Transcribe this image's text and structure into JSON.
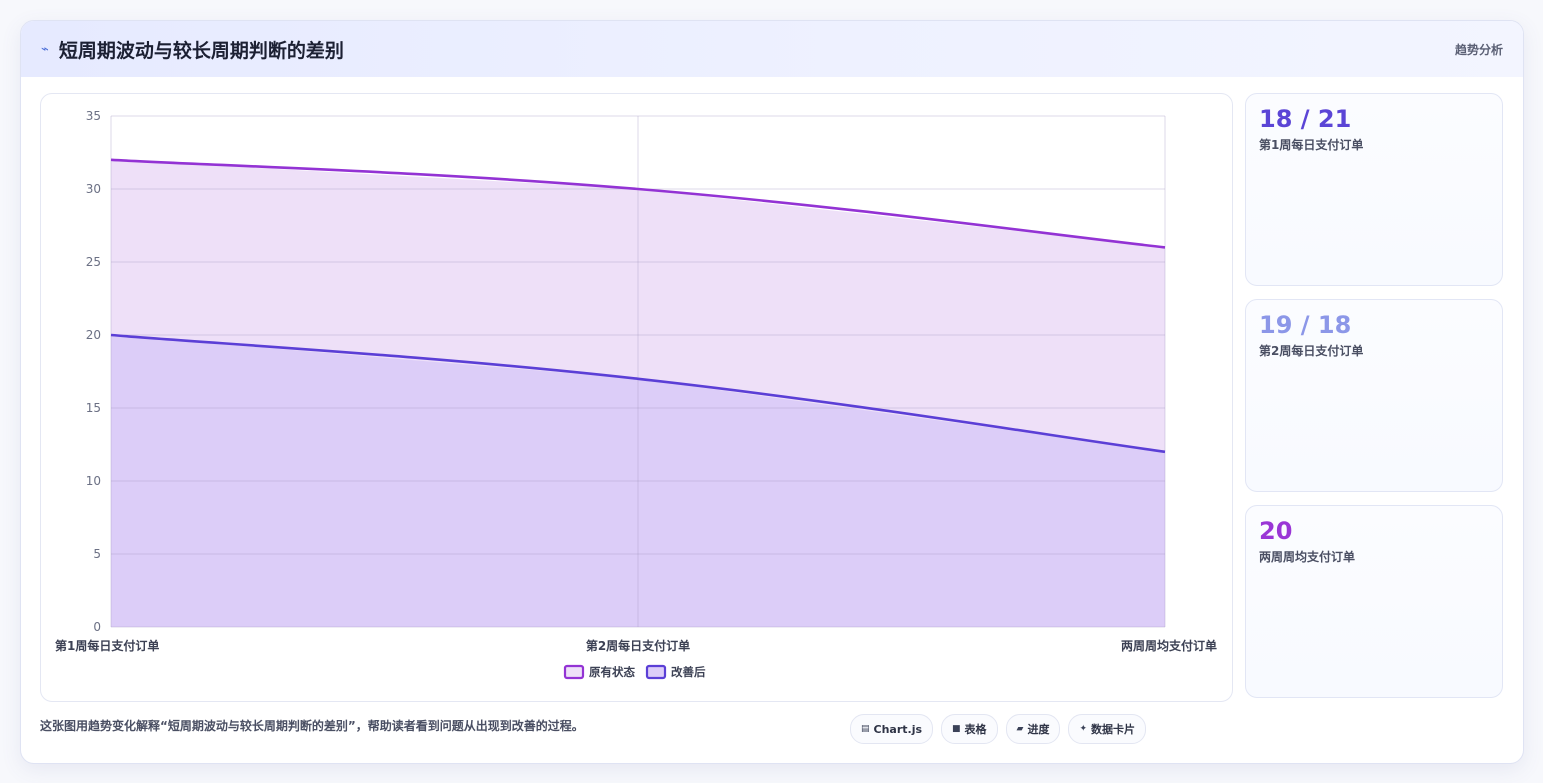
{
  "header": {
    "title": "短周期波动与较长周期判断的差别",
    "tag": "趋势分析"
  },
  "stats": [
    {
      "value": "18 / 21",
      "label": "第1周每日支付订单",
      "color": "#5b45d6"
    },
    {
      "value": "19 / 18",
      "label": "第2周每日支付订单",
      "color": "#8c97e8"
    },
    {
      "value": "20",
      "label": "两周周均支付订单",
      "color": "#9a36d6"
    }
  ],
  "footer": {
    "caption": "这张图用趋势变化解释“短周期波动与较长周期判断的差别”，帮助读者看到问题从出现到改善的过程。",
    "chips": [
      {
        "icon": "chart-icon",
        "glyph": "▤",
        "label": "Chart.js"
      },
      {
        "icon": "table-icon",
        "glyph": "■",
        "label": "表格"
      },
      {
        "icon": "progress-icon",
        "glyph": "▰",
        "label": "进度"
      },
      {
        "icon": "card-icon",
        "glyph": "✦",
        "label": "数据卡片"
      }
    ]
  },
  "chart_data": {
    "type": "area",
    "categories": [
      "第1周每日支付订单",
      "第2周每日支付订单",
      "两周周均支付订单"
    ],
    "series": [
      {
        "name": "原有状态",
        "values": [
          32,
          30,
          26
        ],
        "color": "#9333d4",
        "fill": "#eee0f8"
      },
      {
        "name": "改善后",
        "values": [
          20,
          17,
          12
        ],
        "color": "#5b3fd6",
        "fill": "#dccdf8"
      }
    ],
    "ylim": [
      0,
      35
    ],
    "yticks": [
      0,
      5,
      10,
      15,
      20,
      25,
      30,
      35
    ],
    "grid": true,
    "legend": "bottom"
  }
}
